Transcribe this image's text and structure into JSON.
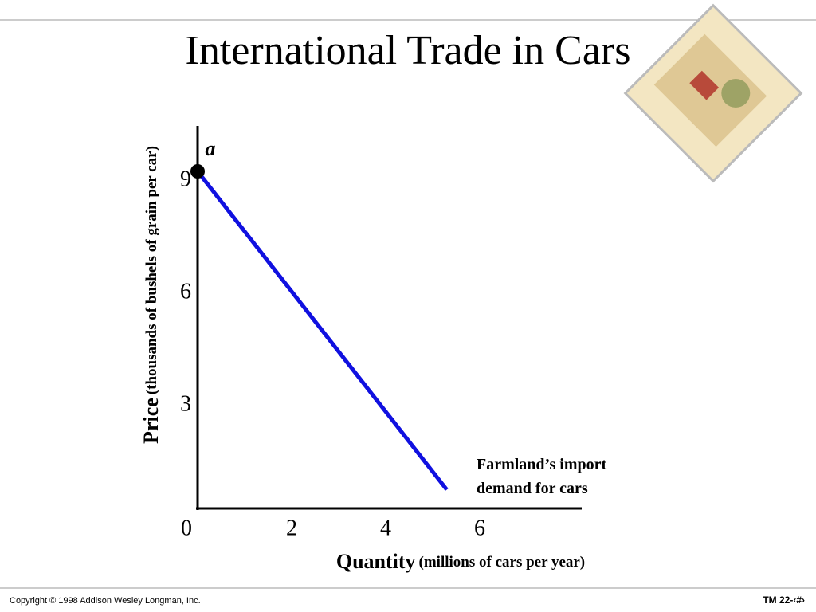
{
  "title": "International Trade in Cars",
  "chart_data": {
    "type": "line",
    "x": [
      0,
      5.3
    ],
    "series": [
      {
        "name": "Farmland’s import demand for cars",
        "color": "#1010e0",
        "values": [
          9,
          0.5
        ]
      }
    ],
    "point_label": "a",
    "xlim": [
      0,
      8.2
    ],
    "ylim": [
      0,
      10.2
    ],
    "xticks": [
      0,
      2,
      4,
      6
    ],
    "yticks": [
      3,
      6,
      9
    ],
    "xlabel": "Quantity",
    "xlabel_detail": "(millions of cars per year)",
    "ylabel": "Price",
    "ylabel_detail": "(thousands of bushels of grain per car)"
  },
  "footer": {
    "copyright": "Copyright © 1998 Addison Wesley Longman, Inc.",
    "slide_number": "TM 22-‹#›"
  }
}
